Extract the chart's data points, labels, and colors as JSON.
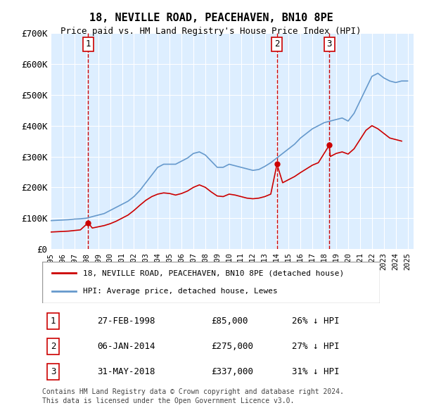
{
  "title": "18, NEVILLE ROAD, PEACEHAVEN, BN10 8PE",
  "subtitle": "Price paid vs. HM Land Registry's House Price Index (HPI)",
  "legend_property": "18, NEVILLE ROAD, PEACEHAVEN, BN10 8PE (detached house)",
  "legend_hpi": "HPI: Average price, detached house, Lewes",
  "footer1": "Contains HM Land Registry data © Crown copyright and database right 2024.",
  "footer2": "This data is licensed under the Open Government Licence v3.0.",
  "property_color": "#cc0000",
  "hpi_color": "#6699cc",
  "background_color": "#ddeeff",
  "ylim": [
    0,
    700000
  ],
  "yticks": [
    0,
    100000,
    200000,
    300000,
    400000,
    500000,
    600000,
    700000
  ],
  "ytick_labels": [
    "£0",
    "£100K",
    "£200K",
    "£300K",
    "£400K",
    "£500K",
    "£600K",
    "£700K"
  ],
  "xlim_start": 1995.0,
  "xlim_end": 2025.5,
  "sales": [
    {
      "num": 1,
      "date": "27-FEB-1998",
      "year": 1998.15,
      "price": 85000,
      "pct": "26%",
      "dir": "↓"
    },
    {
      "num": 2,
      "date": "06-JAN-2014",
      "year": 2014.02,
      "price": 275000,
      "pct": "27%",
      "dir": "↓"
    },
    {
      "num": 3,
      "date": "31-MAY-2018",
      "year": 2018.42,
      "price": 337000,
      "pct": "31%",
      "dir": "↓"
    }
  ],
  "hpi_x": [
    1995,
    1995.5,
    1996,
    1996.5,
    1997,
    1997.5,
    1998,
    1998.5,
    1999,
    1999.5,
    2000,
    2000.5,
    2001,
    2001.5,
    2002,
    2002.5,
    2003,
    2003.5,
    2004,
    2004.5,
    2005,
    2005.5,
    2006,
    2006.5,
    2007,
    2007.5,
    2008,
    2008.5,
    2009,
    2009.5,
    2010,
    2010.5,
    2011,
    2011.5,
    2012,
    2012.5,
    2013,
    2013.5,
    2014,
    2014.5,
    2015,
    2015.5,
    2016,
    2016.5,
    2017,
    2017.5,
    2018,
    2018.5,
    2019,
    2019.5,
    2020,
    2020.5,
    2021,
    2021.5,
    2022,
    2022.5,
    2023,
    2023.5,
    2024,
    2024.5,
    2025
  ],
  "hpi_y": [
    92000,
    93000,
    94000,
    95000,
    97000,
    98000,
    100000,
    105000,
    110000,
    115000,
    125000,
    135000,
    145000,
    155000,
    170000,
    190000,
    215000,
    240000,
    265000,
    275000,
    275000,
    275000,
    285000,
    295000,
    310000,
    315000,
    305000,
    285000,
    265000,
    265000,
    275000,
    270000,
    265000,
    260000,
    255000,
    258000,
    268000,
    280000,
    295000,
    310000,
    325000,
    340000,
    360000,
    375000,
    390000,
    400000,
    410000,
    415000,
    420000,
    425000,
    415000,
    440000,
    480000,
    520000,
    560000,
    570000,
    555000,
    545000,
    540000,
    545000,
    545000
  ],
  "prop_x": [
    1995,
    1995.5,
    1996,
    1996.5,
    1997,
    1997.5,
    1998.15,
    1998.5,
    1999,
    1999.5,
    2000,
    2000.5,
    2001,
    2001.5,
    2002,
    2002.5,
    2003,
    2003.5,
    2004,
    2004.5,
    2005,
    2005.5,
    2006,
    2006.5,
    2007,
    2007.5,
    2008,
    2008.5,
    2009,
    2009.5,
    2010,
    2010.5,
    2011,
    2011.5,
    2012,
    2012.5,
    2013,
    2013.5,
    2014.02,
    2014.5,
    2015,
    2015.5,
    2016,
    2016.5,
    2017,
    2017.5,
    2018.42,
    2018.5,
    2019,
    2019.5,
    2020,
    2020.5,
    2021,
    2021.5,
    2022,
    2022.5,
    2023,
    2023.5,
    2024,
    2024.5
  ],
  "prop_y": [
    55000,
    56000,
    57000,
    58000,
    60000,
    62000,
    85000,
    68000,
    72000,
    76000,
    82000,
    90000,
    100000,
    110000,
    125000,
    142000,
    158000,
    170000,
    178000,
    182000,
    180000,
    175000,
    180000,
    188000,
    200000,
    208000,
    200000,
    185000,
    172000,
    170000,
    178000,
    175000,
    170000,
    165000,
    163000,
    165000,
    170000,
    178000,
    275000,
    215000,
    225000,
    235000,
    248000,
    260000,
    272000,
    280000,
    337000,
    300000,
    310000,
    315000,
    308000,
    325000,
    355000,
    385000,
    400000,
    390000,
    375000,
    360000,
    355000,
    350000
  ]
}
